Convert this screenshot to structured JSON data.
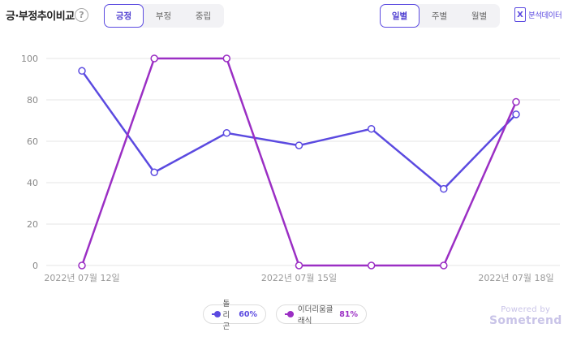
{
  "header": {
    "title": "긍·부정추이비교",
    "help_icon": "?",
    "sentiment_tabs": [
      {
        "label": "긍정",
        "active": true
      },
      {
        "label": "부정",
        "active": false
      },
      {
        "label": "중립",
        "active": false
      }
    ],
    "period_tabs": [
      {
        "label": "일별",
        "active": true
      },
      {
        "label": "주별",
        "active": false
      },
      {
        "label": "월별",
        "active": false
      }
    ],
    "export": {
      "icon": "X",
      "label": "분석데이터"
    }
  },
  "legend": [
    {
      "name": "돌리곤",
      "percent": "60%",
      "color": "#5b4ae0"
    },
    {
      "name": "이더리움클래식",
      "percent": "81%",
      "color": "#9b2fc4"
    }
  ],
  "powered": {
    "line1": "Powered by",
    "line2": "Sometrend"
  },
  "chart_data": {
    "type": "line",
    "x": [
      "2022-07-12",
      "2022-07-13",
      "2022-07-14",
      "2022-07-15",
      "2022-07-16",
      "2022-07-17",
      "2022-07-18"
    ],
    "x_tick_labels": [
      "2022년 07월 12일",
      "",
      "",
      "2022년 07월 15일",
      "",
      "",
      "2022년 07월 18일"
    ],
    "series": [
      {
        "name": "돌리곤",
        "color": "#5b4ae0",
        "values": [
          94,
          45,
          64,
          58,
          66,
          37,
          73
        ]
      },
      {
        "name": "이더리움클래식",
        "color": "#9b2fc4",
        "values": [
          0,
          100,
          100,
          0,
          0,
          0,
          79
        ]
      }
    ],
    "y_ticks": [
      0,
      20,
      40,
      60,
      80,
      100
    ],
    "ylim": [
      0,
      100
    ],
    "grid": true,
    "legend_position": "bottom-center"
  }
}
